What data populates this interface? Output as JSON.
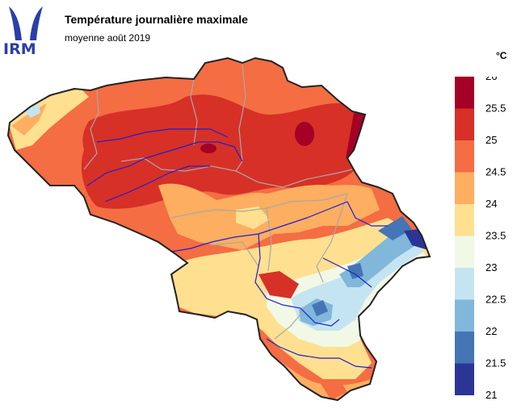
{
  "header": {
    "logo_text": "IRM",
    "title": "Température journalière maximale",
    "subtitle": "moyenne août 2019"
  },
  "legend": {
    "unit": "°C",
    "ticks": [
      "26",
      "25.5",
      "25",
      "24.5",
      "24",
      "23.5",
      "23",
      "22.5",
      "22",
      "21.5",
      "21"
    ],
    "colors": [
      "#a50026",
      "#d73027",
      "#f46d43",
      "#fdae61",
      "#fee090",
      "#f1f8e6",
      "#c5e4f1",
      "#80b7da",
      "#4575b4",
      "#2c3596"
    ]
  },
  "palette": {
    "brand": "#2a3fa8",
    "border": "#222222",
    "river": "#1f1fd0",
    "province": "#a8a8a8"
  }
}
